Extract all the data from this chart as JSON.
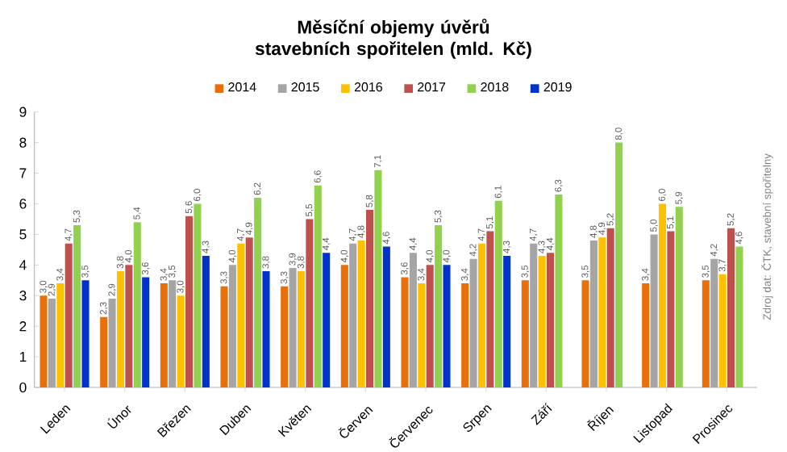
{
  "chart_data": {
    "type": "bar",
    "title": "Měsíční objemy úvěrů stavebních spořitelen (mld. Kč)",
    "categories": [
      "Leden",
      "Únor",
      "Březen",
      "Duben",
      "Květen",
      "Červen",
      "Červenec",
      "Srpen",
      "Září",
      "Říjen",
      "Listopad",
      "Prosinec"
    ],
    "series": [
      {
        "name": "2014",
        "color": "#e8700a",
        "values": [
          3.0,
          2.3,
          3.4,
          3.3,
          3.3,
          4.0,
          3.6,
          3.4,
          3.5,
          3.5,
          3.4,
          3.5
        ],
        "value_labels": [
          "3,0",
          "2,3",
          "3,4",
          "3,3",
          "3,3",
          "4,0",
          "3,6",
          "3,4",
          "3,5",
          "3,5",
          "3,4",
          "3,5"
        ]
      },
      {
        "name": "2015",
        "color": "#a5a5a5",
        "values": [
          2.9,
          2.9,
          3.5,
          4.0,
          3.9,
          4.7,
          4.4,
          4.2,
          4.7,
          4.8,
          5.0,
          4.2
        ],
        "value_labels": [
          "2,9",
          "2,9",
          "3,5",
          "4,0",
          "3,9",
          "4,7",
          "4,4",
          "4,2",
          "4,7",
          "4,8",
          "5,0",
          "4,2"
        ]
      },
      {
        "name": "2016",
        "color": "#ffc000",
        "values": [
          3.4,
          3.8,
          3.0,
          4.7,
          3.8,
          4.8,
          3.4,
          4.7,
          4.3,
          4.9,
          6.0,
          3.7
        ],
        "value_labels": [
          "3,4",
          "3,8",
          "3,0",
          "4,7",
          "3,8",
          "4,8",
          "3,4",
          "4,7",
          "4,3",
          "4,9",
          "6,0",
          "3,7"
        ]
      },
      {
        "name": "2017",
        "color": "#c0504d",
        "values": [
          4.7,
          4.0,
          5.6,
          4.9,
          5.5,
          5.8,
          4.0,
          5.1,
          4.4,
          5.2,
          5.1,
          5.2
        ],
        "value_labels": [
          "4,7",
          "4,0",
          "5,6",
          "4,9",
          "5,5",
          "5,8",
          "4,0",
          "5,1",
          "4,4",
          "5,2",
          "5,1",
          "5,2"
        ]
      },
      {
        "name": "2018",
        "color": "#92d050",
        "values": [
          5.3,
          5.4,
          6.0,
          6.2,
          6.6,
          7.1,
          5.3,
          6.1,
          6.3,
          8.0,
          5.9,
          4.6
        ],
        "value_labels": [
          "5,3",
          "5,4",
          "6,0",
          "6,2",
          "6,6",
          "7,1",
          "5,3",
          "6,1",
          "6,3",
          "8,0",
          "5,9",
          "4,6"
        ]
      },
      {
        "name": "2019",
        "color": "#0033cc",
        "values": [
          3.5,
          3.6,
          4.3,
          3.8,
          4.4,
          4.6,
          4.0,
          4.3,
          null,
          null,
          null,
          null
        ],
        "value_labels": [
          "3,5",
          "3,6",
          "4,3",
          "3,8",
          "4,4",
          "4,6",
          "4,0",
          "4,3",
          null,
          null,
          null,
          null
        ]
      }
    ],
    "ylim": [
      0,
      9
    ],
    "yticks": [
      0,
      1,
      2,
      3,
      4,
      5,
      6,
      7,
      8,
      9
    ],
    "legend": "top",
    "annotations": [
      "Zdroj dat: ČTK, stavební spořitelny"
    ]
  }
}
